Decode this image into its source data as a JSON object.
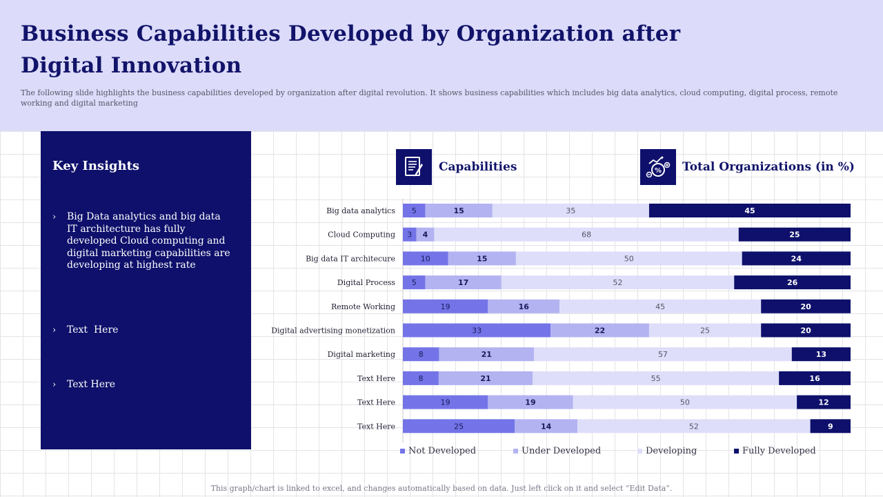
{
  "title": "Business Capabilities Developed by Organization after Digital Innovation",
  "subtitle": "The following slide highlights the business capabilities developed by organization after digital revolution. It shows business capabilities which includes big data analytics, cloud computing, digital process, remote working and digital marketing",
  "insights": {
    "heading": "Key Insights",
    "items": [
      "Big Data analytics and big data IT architecture has fully developed Cloud computing and digital marketing capabilities are developing at highest rate",
      "Text  Here",
      "Text Here"
    ]
  },
  "columns": {
    "capabilities": "Capabilities",
    "total": "Total Organizations (in %)"
  },
  "icons": {
    "capabilities": "document-pen-icon",
    "total": "growth-percent-icon"
  },
  "colors": {
    "not_developed": "#7474e8",
    "under_developed": "#b3b3f2",
    "developing": "#dedefa",
    "fully_developed": "#0e106b",
    "accent": "#12146a"
  },
  "chart_data": {
    "type": "bar",
    "orientation": "horizontal",
    "stacked": true,
    "categories": [
      "Big data analytics",
      "Cloud Computing",
      "Big data IT architecure",
      "Digital Process",
      "Remote Working",
      "Digital advertising monetization",
      "Digital marketing",
      "Text Here",
      "Text Here",
      "Text Here"
    ],
    "series": [
      {
        "name": "Not Developed",
        "values": [
          5,
          3,
          10,
          5,
          19,
          33,
          8,
          8,
          19,
          25
        ]
      },
      {
        "name": "Under Developed",
        "values": [
          15,
          4,
          15,
          17,
          16,
          22,
          21,
          21,
          19,
          14
        ]
      },
      {
        "name": "Developing",
        "values": [
          35,
          68,
          50,
          52,
          45,
          25,
          57,
          55,
          50,
          52
        ]
      },
      {
        "name": "Fully Developed",
        "values": [
          45,
          25,
          24,
          26,
          20,
          20,
          13,
          16,
          12,
          9
        ]
      }
    ],
    "legend_position": "bottom",
    "data_labels": true
  },
  "footer": "This graph/chart is linked to excel, and changes automatically based on data. Just left click on it and select “Edit Data”."
}
